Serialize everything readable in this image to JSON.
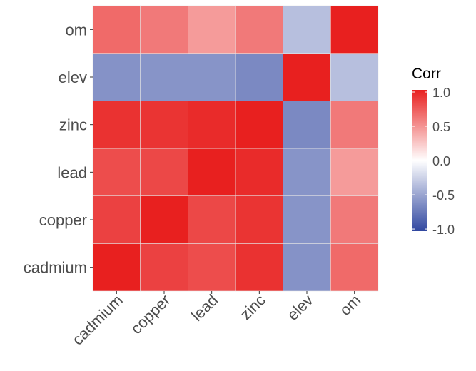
{
  "chart_data": {
    "type": "heatmap",
    "title": "",
    "xlabel": "",
    "ylabel": "",
    "variables": [
      "cadmium",
      "copper",
      "lead",
      "zinc",
      "elev",
      "om"
    ],
    "matrix": [
      [
        1.0,
        0.85,
        0.8,
        0.92,
        -0.59,
        0.67
      ],
      [
        0.85,
        1.0,
        0.82,
        0.91,
        -0.58,
        0.6
      ],
      [
        0.8,
        0.82,
        1.0,
        0.95,
        -0.58,
        0.45
      ],
      [
        0.92,
        0.91,
        0.95,
        1.0,
        -0.64,
        0.6
      ],
      [
        -0.59,
        -0.58,
        -0.58,
        -0.64,
        1.0,
        -0.35
      ],
      [
        0.67,
        0.6,
        0.45,
        0.6,
        -0.35,
        1.0
      ]
    ],
    "legend": {
      "title": "Corr",
      "position": "right",
      "limits": [
        -1,
        1
      ],
      "ticks": [
        "1.0",
        "0.5",
        "0.0",
        "-0.5",
        "-1.0"
      ]
    },
    "colors": {
      "low": "#3047A0",
      "mid": "#FFFFFF",
      "high": "#E8201F"
    },
    "grid": false
  }
}
